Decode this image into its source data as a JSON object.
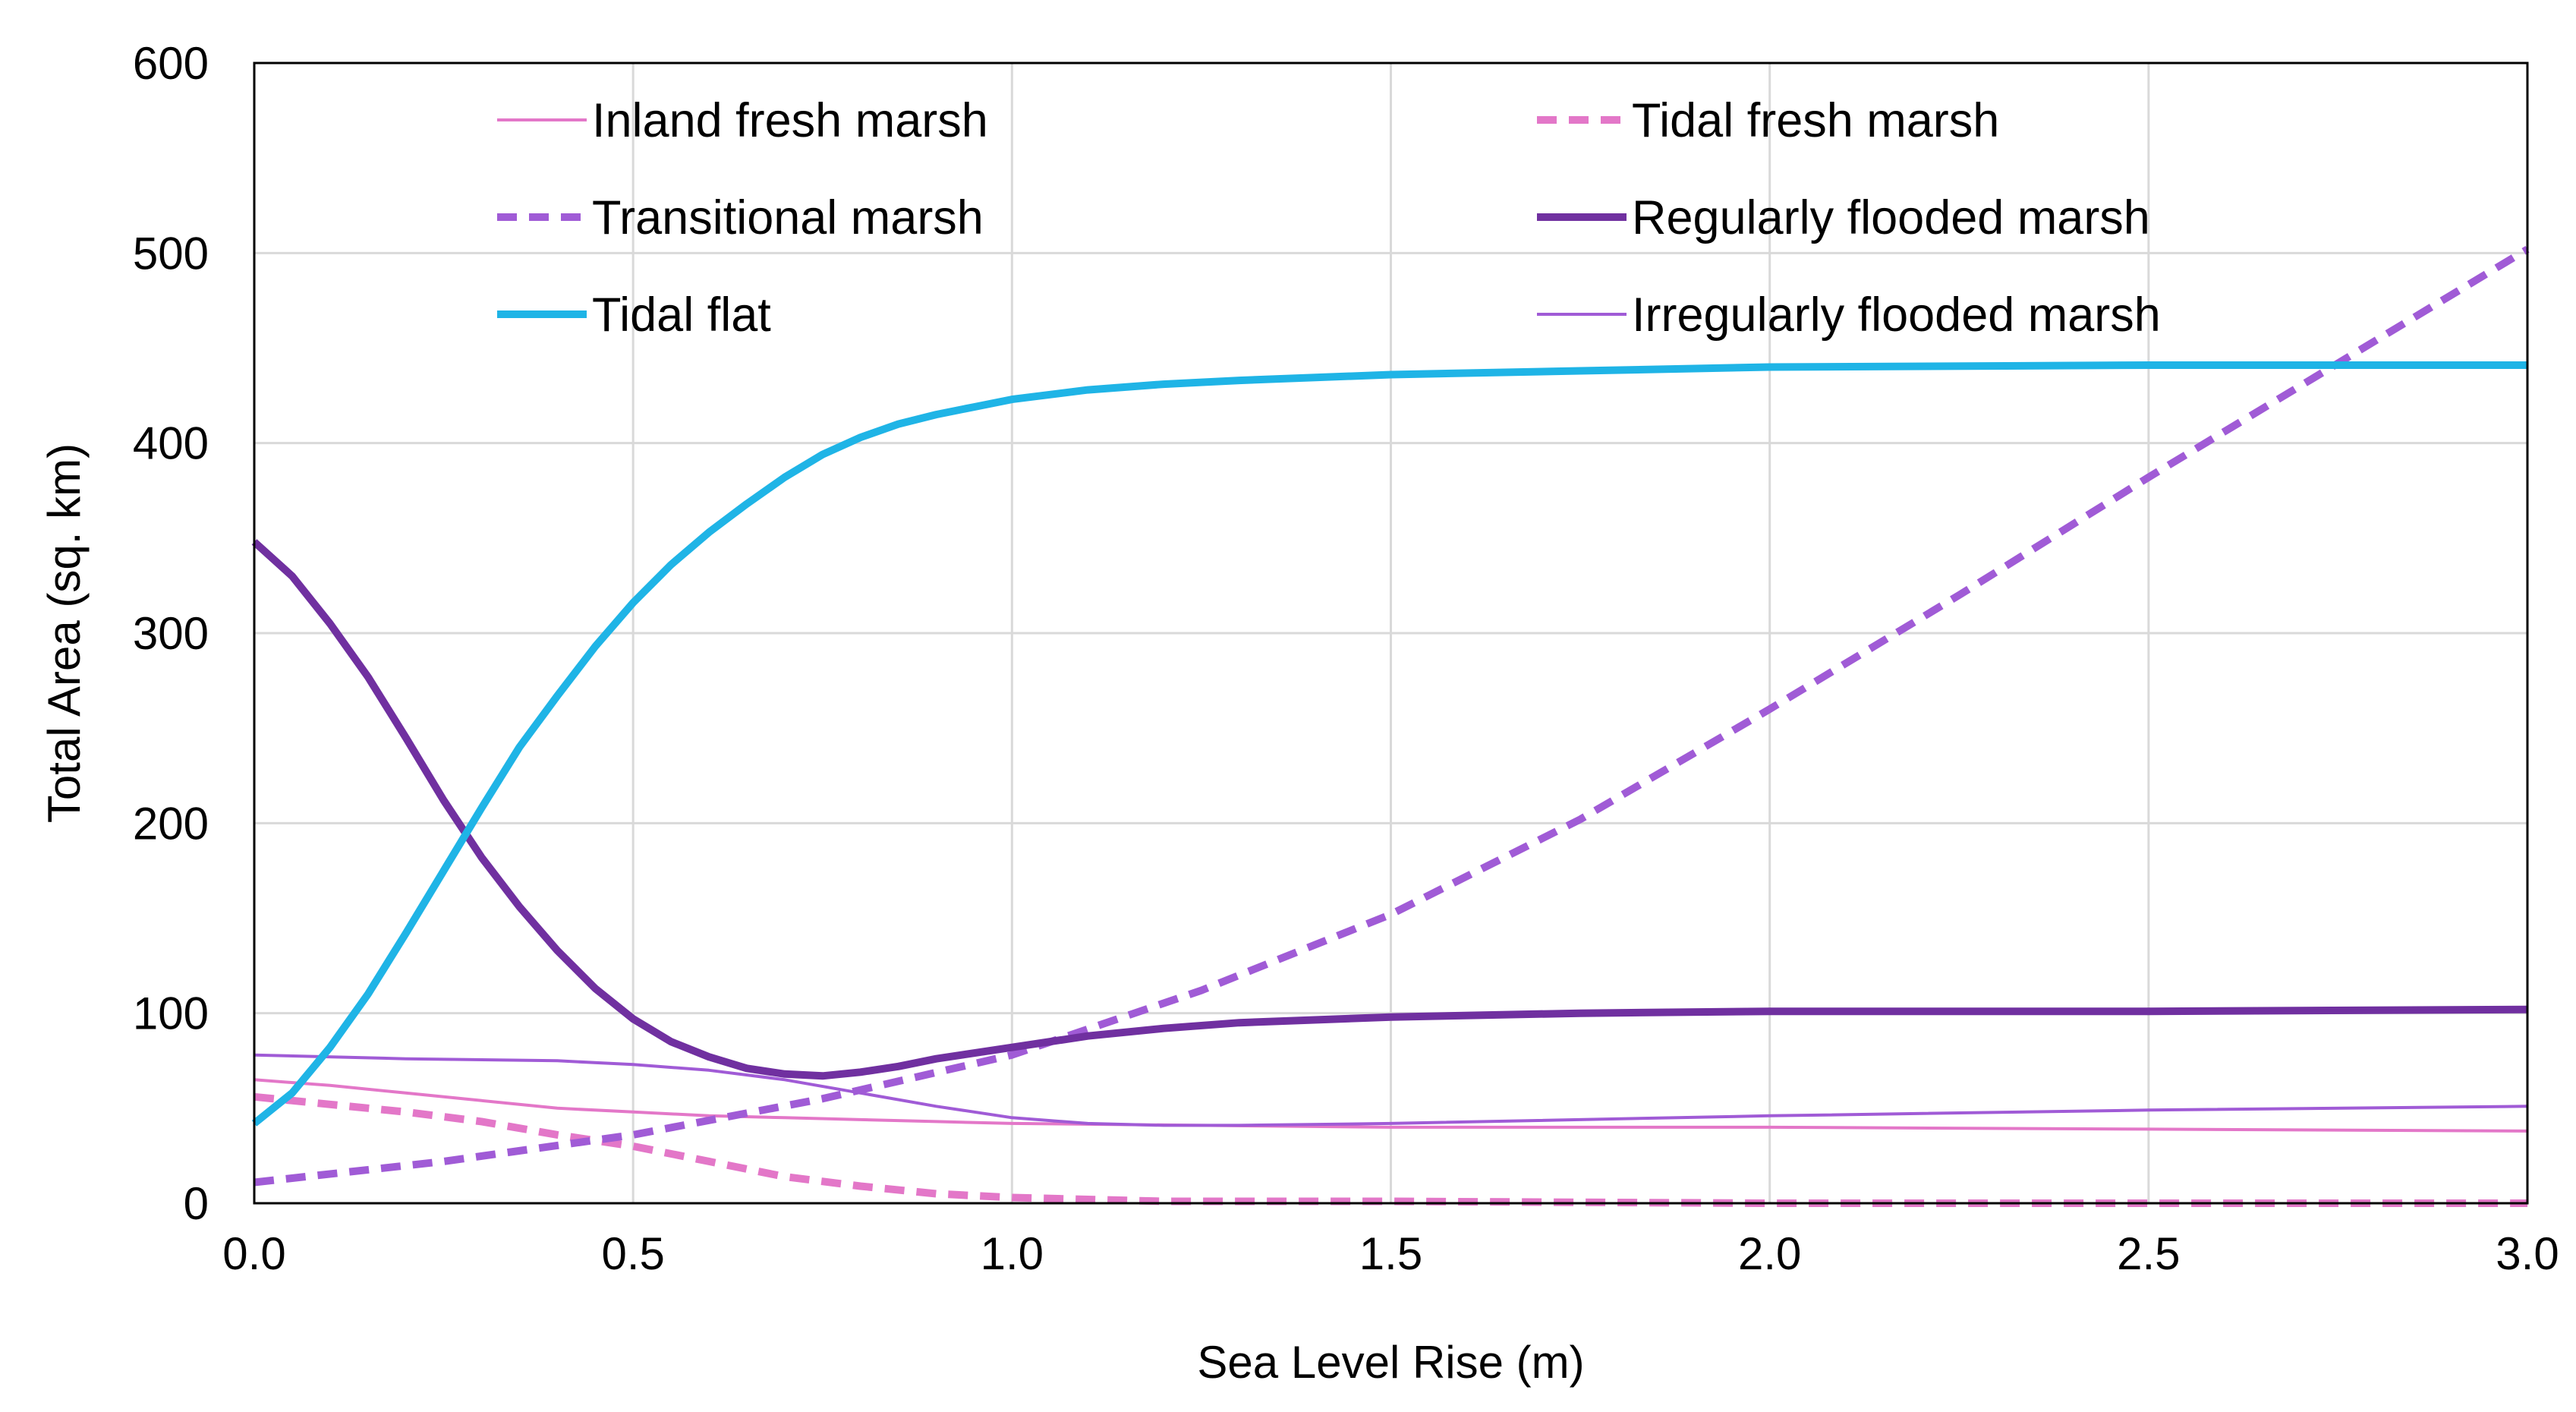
{
  "chart_data": {
    "type": "line",
    "title": "",
    "xlabel": "Sea Level Rise (m)",
    "ylabel": "Total Area (sq. km)",
    "xlim": [
      0,
      3
    ],
    "ylim": [
      0,
      600
    ],
    "xticks": [
      "0.0",
      "0.5",
      "1.0",
      "1.5",
      "2.0",
      "2.5",
      "3.0"
    ],
    "xtick_values": [
      0,
      0.5,
      1.0,
      1.5,
      2.0,
      2.5,
      3.0
    ],
    "yticks": [
      "0",
      "100",
      "200",
      "300",
      "400",
      "500",
      "600"
    ],
    "ytick_values": [
      0,
      100,
      200,
      300,
      400,
      500,
      600
    ],
    "grid": true,
    "legend_position": "top, inside plot, two columns",
    "series": [
      {
        "name": "Inland fresh marsh",
        "color": "#E377C8",
        "style": "solid",
        "weight": "thin",
        "x": [
          0,
          0.1,
          0.2,
          0.3,
          0.4,
          0.5,
          0.6,
          0.7,
          0.8,
          0.9,
          1.0,
          1.5,
          2.0,
          2.5,
          3.0
        ],
        "y": [
          65,
          62,
          58,
          54,
          50,
          48,
          46,
          45,
          44,
          43,
          42,
          40,
          40,
          39,
          38
        ]
      },
      {
        "name": "Tidal fresh marsh",
        "color": "#E377C8",
        "style": "dashed",
        "weight": "bold",
        "x": [
          0,
          0.1,
          0.2,
          0.3,
          0.4,
          0.5,
          0.6,
          0.7,
          0.8,
          0.9,
          1.0,
          1.1,
          1.2,
          1.5,
          2.0,
          2.5,
          3.0
        ],
        "y": [
          56,
          52,
          48,
          43,
          36,
          30,
          22,
          14,
          9,
          5,
          3,
          2,
          1,
          1,
          0,
          0,
          0
        ]
      },
      {
        "name": "Transitional marsh",
        "color": "#A05BD6",
        "style": "dashed",
        "weight": "bold",
        "x": [
          0,
          0.25,
          0.5,
          0.75,
          1.0,
          1.25,
          1.5,
          1.75,
          2.0,
          2.25,
          2.5,
          2.75,
          3.0
        ],
        "y": [
          11,
          22,
          36,
          55,
          78,
          112,
          152,
          202,
          260,
          320,
          382,
          442,
          502
        ]
      },
      {
        "name": "Regularly flooded marsh",
        "color": "#7030A0",
        "style": "solid",
        "weight": "bold",
        "x": [
          0,
          0.05,
          0.1,
          0.15,
          0.2,
          0.25,
          0.3,
          0.35,
          0.4,
          0.45,
          0.5,
          0.55,
          0.6,
          0.65,
          0.7,
          0.75,
          0.8,
          0.85,
          0.9,
          1.0,
          1.1,
          1.2,
          1.3,
          1.5,
          1.75,
          2.0,
          2.5,
          3.0
        ],
        "y": [
          348,
          330,
          305,
          277,
          245,
          212,
          182,
          156,
          133,
          113,
          97,
          85,
          77,
          71,
          68,
          67,
          69,
          72,
          76,
          82,
          88,
          92,
          95,
          98,
          100,
          101,
          101,
          102
        ]
      },
      {
        "name": "Tidal flat",
        "color": "#1FB4E6",
        "style": "solid",
        "weight": "bold",
        "x": [
          0,
          0.05,
          0.1,
          0.15,
          0.2,
          0.25,
          0.3,
          0.35,
          0.4,
          0.45,
          0.5,
          0.55,
          0.6,
          0.65,
          0.7,
          0.75,
          0.8,
          0.85,
          0.9,
          0.95,
          1.0,
          1.1,
          1.2,
          1.3,
          1.5,
          1.75,
          2.0,
          2.5,
          3.0
        ],
        "y": [
          42,
          58,
          82,
          110,
          142,
          175,
          208,
          240,
          267,
          293,
          316,
          336,
          353,
          368,
          382,
          394,
          403,
          410,
          415,
          419,
          423,
          428,
          431,
          433,
          436,
          438,
          440,
          441,
          441
        ]
      },
      {
        "name": "Irregularly flooded marsh",
        "color": "#A05BD6",
        "style": "solid",
        "weight": "thin",
        "x": [
          0,
          0.2,
          0.4,
          0.5,
          0.6,
          0.7,
          0.8,
          0.9,
          1.0,
          1.1,
          1.2,
          1.3,
          1.5,
          2.0,
          2.5,
          3.0
        ],
        "y": [
          78,
          76,
          75,
          73,
          70,
          65,
          58,
          51,
          45,
          42,
          41,
          41,
          42,
          46,
          49,
          51
        ]
      }
    ]
  }
}
